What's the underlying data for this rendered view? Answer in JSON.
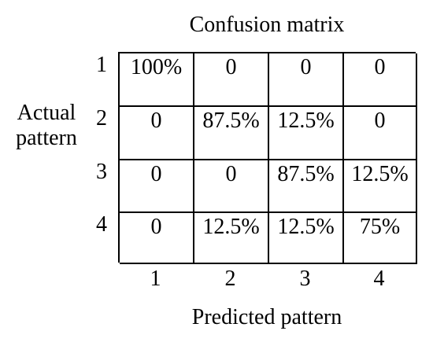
{
  "chart_data": {
    "type": "heatmap",
    "title": "Confusion matrix",
    "ylabel": "Actual pattern",
    "xlabel": "Predicted pattern",
    "row_labels": [
      "1",
      "2",
      "3",
      "4"
    ],
    "col_labels": [
      "1",
      "2",
      "3",
      "4"
    ],
    "cells": [
      [
        "100%",
        "0",
        "0",
        "0"
      ],
      [
        "0",
        "87.5%",
        "12.5%",
        "0"
      ],
      [
        "0",
        "0",
        "87.5%",
        "12.5%"
      ],
      [
        "0",
        "12.5%",
        "12.5%",
        "75%"
      ]
    ],
    "ylabel_lines": [
      "Actual",
      "pattern"
    ]
  }
}
